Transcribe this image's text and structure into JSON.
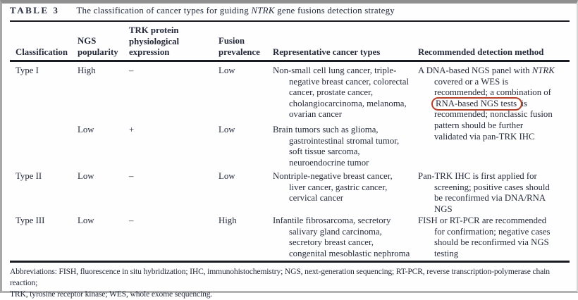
{
  "title": {
    "label": "TABLE 3",
    "caption_before_gene": "The classification of cancer types for guiding ",
    "gene": "NTRK",
    "caption_after_gene": " gene fusions detection strategy"
  },
  "table": {
    "headers": [
      "Classification",
      "NGS\npopularity",
      "TRK protein\nphysiological\nexpression",
      "Fusion\nprevalence",
      "Representative cancer types",
      "Recommended detection method"
    ],
    "rows": [
      {
        "classification": "Type I",
        "ngs_popularity": "High",
        "trk_expression": "–",
        "fusion_prevalence": "Low",
        "cancer_types": "Non-small cell lung cancer, triple-\nnegative breast cancer, colorectal\ncancer, prostate cancer,\ncholangiocarcinoma, melanoma,\novarian cancer",
        "method_segments": {
          "before_gene": "A DNA-based NGS panel with ",
          "gene": "NTRK",
          "after_gene": "\ncovered or a WES is\nrecommended; a combination of\n",
          "circled": "RNA-based NGS tests",
          "after_circled": " is\nrecommended; nonclassic fusion\npattern should be further\nvalidated via pan-TRK IHC"
        }
      },
      {
        "classification": "",
        "ngs_popularity": "Low",
        "trk_expression": "+",
        "fusion_prevalence": "Low",
        "cancer_types": "Brain tumors such as glioma,\ngastrointestinal stromal tumor,\nsoft tissue sarcoma,\nneuroendocrine tumor",
        "method": ""
      },
      {
        "classification": "Type II",
        "ngs_popularity": "Low",
        "trk_expression": "–",
        "fusion_prevalence": "Low",
        "cancer_types": "Nontriple-negative breast cancer,\nliver cancer, gastric cancer,\ncervical cancer",
        "method": "Pan-TRK IHC is first applied for\nscreening; positive cases should\nbe reconfirmed via DNA/RNA\nNGS"
      },
      {
        "classification": "Type III",
        "ngs_popularity": "Low",
        "trk_expression": "–",
        "fusion_prevalence": "High",
        "cancer_types": "Infantile fibrosarcoma, secretory\nsalivary gland carcinoma,\nsecretory breast cancer,\ncongenital mesoblastic nephroma",
        "method": "FISH or RT-PCR are recommended\nfor confirmation; negative cases\nshould be reconfirmed via NGS\ntesting"
      }
    ]
  },
  "annotation": {
    "highlight_color": "#b5402c"
  },
  "footer": {
    "abbreviations": "Abbreviations: FISH, fluorescence in situ hybridization; IHC, immunohistochemistry; NGS, next-generation sequencing; RT-PCR, reverse transcription-polymerase chain reaction;\nTRK, tyrosine receptor kinase; WES, whole exome sequencing."
  }
}
